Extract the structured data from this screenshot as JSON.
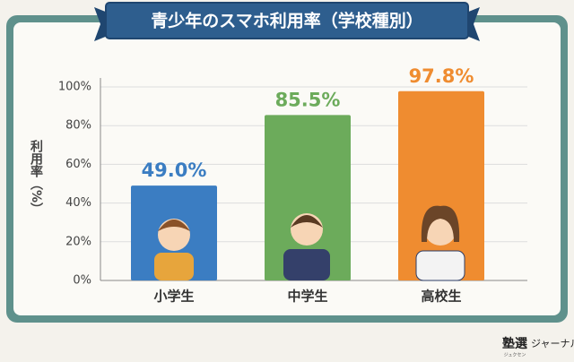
{
  "chart_data": {
    "type": "bar",
    "title": "青少年のスマホ利用率（学校種別）",
    "y_label": "利用率（%）",
    "categories": [
      "小学生",
      "中学生",
      "高校生"
    ],
    "values": [
      49.0,
      85.5,
      97.8
    ],
    "value_labels": [
      "49.0%",
      "85.5%",
      "97.8%"
    ],
    "colors": [
      "#3b7dc2",
      "#6cab5b",
      "#ef8c30"
    ],
    "ylim": [
      0,
      100
    ],
    "yticks": [
      {
        "value": 0,
        "label": "0%"
      },
      {
        "value": 20,
        "label": "20%"
      },
      {
        "value": 40,
        "label": "40%"
      },
      {
        "value": 60,
        "label": "60%"
      },
      {
        "value": 80,
        "label": "80%"
      },
      {
        "value": 100,
        "label": "100%"
      }
    ],
    "grid": true
  },
  "brand": {
    "mark": "塾選",
    "ruby": "ジュクセン",
    "name": "ジャーナル"
  }
}
